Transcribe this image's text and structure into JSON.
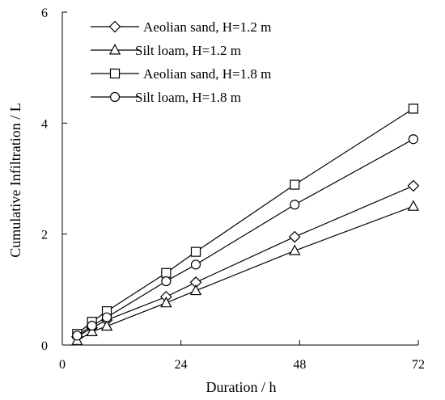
{
  "chart_data": {
    "type": "line",
    "xlabel": "Duration / h",
    "ylabel": "Cumulative Infiltration / L",
    "xlim": [
      0,
      72
    ],
    "ylim": [
      0,
      6
    ],
    "xticks": [
      0,
      24,
      48,
      72
    ],
    "yticks": [
      0,
      2,
      4,
      6
    ],
    "grid": false,
    "legend_position": "top-left",
    "line_color": "#000000",
    "series": [
      {
        "name": "Aeolian sand, H=1.2 m",
        "marker": "diamond",
        "x": [
          3,
          6,
          9,
          21,
          27,
          47,
          71
        ],
        "y": [
          0.15,
          0.31,
          0.45,
          0.87,
          1.13,
          1.95,
          2.87
        ]
      },
      {
        "name": "Silt loam, H=1.2 m",
        "marker": "triangle",
        "x": [
          3,
          6,
          9,
          21,
          27,
          47,
          71
        ],
        "y": [
          0.08,
          0.24,
          0.34,
          0.76,
          0.98,
          1.7,
          2.5
        ]
      },
      {
        "name": "Aeolian sand, H=1.8 m",
        "marker": "square",
        "x": [
          3,
          6,
          9,
          21,
          27,
          47,
          71
        ],
        "y": [
          0.2,
          0.42,
          0.61,
          1.3,
          1.68,
          2.89,
          4.26
        ]
      },
      {
        "name": "Silt loam, H=1.8 m",
        "marker": "circle",
        "x": [
          3,
          6,
          9,
          21,
          27,
          47,
          71
        ],
        "y": [
          0.17,
          0.35,
          0.5,
          1.15,
          1.45,
          2.53,
          3.71
        ]
      }
    ]
  }
}
